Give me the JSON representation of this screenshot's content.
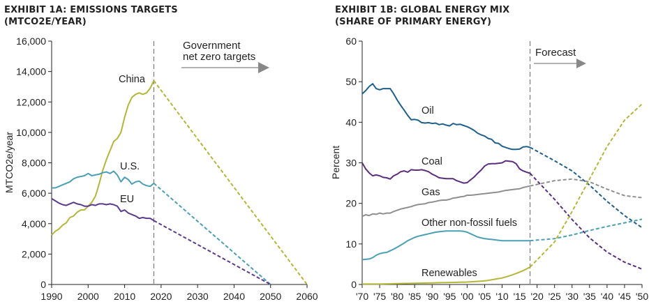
{
  "chart_data": [
    {
      "type": "line",
      "title": "EXHIBIT 1A: EMISSIONS TARGETS",
      "subtitle": "(MTCO2E/YEAR)",
      "ylabel": "MTCO2e/year",
      "xlim": [
        1990,
        2060
      ],
      "ylim": [
        0,
        16000
      ],
      "xticks": [
        1990,
        2000,
        2010,
        2020,
        2030,
        2040,
        2050,
        2060
      ],
      "xtick_labels": [
        "1990",
        "2000",
        "2010",
        "2020",
        "2030",
        "2040",
        "2050",
        "2060"
      ],
      "yticks": [
        0,
        2000,
        4000,
        6000,
        8000,
        10000,
        12000,
        14000,
        16000
      ],
      "ytick_labels": [
        "0",
        "2,000",
        "4,000",
        "6,000",
        "8,000",
        "10,000",
        "12,000",
        "14,000",
        "16,000"
      ],
      "divider_x": 2018,
      "annotation": {
        "line1": "Government",
        "line2": "net zero targets"
      },
      "series": [
        {
          "name": "China",
          "color": "#b5b53a",
          "x": [
            1990,
            1991,
            1992,
            1993,
            1994,
            1995,
            1996,
            1997,
            1998,
            1999,
            2000,
            2001,
            2002,
            2003,
            2004,
            2005,
            2006,
            2007,
            2008,
            2009,
            2010,
            2011,
            2012,
            2013,
            2014,
            2015,
            2016,
            2017,
            2018
          ],
          "y": [
            3250,
            3500,
            3650,
            3900,
            4050,
            4400,
            4500,
            4750,
            4900,
            4900,
            5150,
            5400,
            5800,
            6600,
            7500,
            8200,
            8800,
            9400,
            9600,
            10000,
            11000,
            11800,
            12300,
            12500,
            12600,
            12500,
            12600,
            12900,
            13400
          ],
          "proj_x": [
            2018,
            2060
          ],
          "proj_y": [
            13400,
            0
          ]
        },
        {
          "name": "U.S.",
          "color": "#4a9fb5",
          "x": [
            1990,
            1991,
            1992,
            1993,
            1994,
            1995,
            1996,
            1997,
            1998,
            1999,
            2000,
            2001,
            2002,
            2003,
            2004,
            2005,
            2006,
            2007,
            2008,
            2009,
            2010,
            2011,
            2012,
            2013,
            2014,
            2015,
            2016,
            2017,
            2018
          ],
          "y": [
            6350,
            6350,
            6450,
            6550,
            6650,
            6750,
            6950,
            7050,
            7100,
            7150,
            7300,
            7150,
            7200,
            7250,
            7350,
            7400,
            7300,
            7450,
            7200,
            6750,
            7050,
            6900,
            6600,
            6750,
            6800,
            6600,
            6500,
            6450,
            6650
          ],
          "proj_x": [
            2018,
            2050
          ],
          "proj_y": [
            6650,
            0
          ]
        },
        {
          "name": "EU",
          "color": "#5b3a8c",
          "x": [
            1990,
            1991,
            1992,
            1993,
            1994,
            1995,
            1996,
            1997,
            1998,
            1999,
            2000,
            2001,
            2002,
            2003,
            2004,
            2005,
            2006,
            2007,
            2008,
            2009,
            2010,
            2011,
            2012,
            2013,
            2014,
            2015,
            2016,
            2017,
            2018
          ],
          "y": [
            5650,
            5500,
            5350,
            5250,
            5200,
            5300,
            5400,
            5300,
            5250,
            5150,
            5150,
            5250,
            5200,
            5300,
            5300,
            5250,
            5300,
            5250,
            5150,
            4800,
            4900,
            4700,
            4600,
            4500,
            4350,
            4400,
            4350,
            4350,
            4200
          ],
          "proj_x": [
            2018,
            2050
          ],
          "proj_y": [
            4200,
            0
          ]
        }
      ]
    },
    {
      "type": "line",
      "title": "EXHIBIT 1B: GLOBAL ENERGY MIX",
      "subtitle": "(SHARE OF PRIMARY ENERGY)",
      "ylabel": "Percent",
      "xlim": [
        1970,
        2050
      ],
      "ylim": [
        0,
        60
      ],
      "xticks": [
        1970,
        1975,
        1980,
        1985,
        1990,
        1995,
        2000,
        2005,
        2010,
        2015,
        2020,
        2025,
        2030,
        2035,
        2040,
        2045,
        2050
      ],
      "xtick_labels": [
        "'70",
        "'75",
        "'80",
        "'85",
        "'90",
        "'95",
        "'00",
        "'05",
        "'10",
        "'15",
        "'20",
        "'25",
        "'30",
        "'35",
        "'40",
        "'45",
        "'50"
      ],
      "yticks": [
        0,
        10,
        20,
        30,
        40,
        50,
        60
      ],
      "ytick_labels": [
        "0",
        "10",
        "20",
        "30",
        "40",
        "50",
        "60"
      ],
      "divider_x": 2018,
      "annotation": {
        "line1": "Forecast"
      },
      "series": [
        {
          "name": "Oil",
          "color": "#1f5f8b",
          "x": [
            1970,
            1971,
            1972,
            1973,
            1974,
            1975,
            1976,
            1977,
            1978,
            1979,
            1980,
            1981,
            1982,
            1983,
            1984,
            1985,
            1986,
            1987,
            1988,
            1989,
            1990,
            1991,
            1992,
            1993,
            1994,
            1995,
            1996,
            1997,
            1998,
            1999,
            2000,
            2001,
            2002,
            2003,
            2004,
            2005,
            2006,
            2007,
            2008,
            2009,
            2010,
            2011,
            2012,
            2013,
            2014,
            2015,
            2016,
            2017,
            2018
          ],
          "y": [
            47,
            47.8,
            48.8,
            49.5,
            48.3,
            48,
            48.3,
            48.3,
            48.3,
            47,
            45.5,
            44.2,
            43,
            41.7,
            40.6,
            40.7,
            40.5,
            39.9,
            39.8,
            39.9,
            39.7,
            39.8,
            39.4,
            39.6,
            39.3,
            39.1,
            39.7,
            39.4,
            39.5,
            39.2,
            38.9,
            38.5,
            38,
            37.3,
            36.9,
            36.6,
            36,
            35.8,
            34.9,
            34.8,
            34.1,
            33.8,
            33.5,
            33.3,
            33.3,
            33.4,
            33.9,
            34.0,
            33.8
          ],
          "proj_x": [
            2018,
            2025,
            2030,
            2035,
            2040,
            2045,
            2050
          ],
          "proj_y": [
            33.8,
            30.5,
            28,
            24.5,
            20.5,
            17,
            14
          ]
        },
        {
          "name": "Coal",
          "color": "#5b2d7f",
          "x": [
            1970,
            1971,
            1972,
            1973,
            1974,
            1975,
            1976,
            1977,
            1978,
            1979,
            1980,
            1981,
            1982,
            1983,
            1984,
            1985,
            1986,
            1987,
            1988,
            1989,
            1990,
            1991,
            1992,
            1993,
            1994,
            1995,
            1996,
            1997,
            1998,
            1999,
            2000,
            2001,
            2002,
            2003,
            2004,
            2005,
            2006,
            2007,
            2008,
            2009,
            2010,
            2011,
            2012,
            2013,
            2014,
            2015,
            2016,
            2017,
            2018
          ],
          "y": [
            30,
            28.5,
            27.5,
            26.8,
            27,
            26.8,
            26.4,
            26.3,
            26,
            26.8,
            27.2,
            27.8,
            28,
            27.7,
            28.3,
            28.2,
            28.2,
            28.3,
            28.1,
            27.8,
            27.2,
            26.8,
            26.3,
            26.2,
            26.1,
            26.1,
            26.1,
            25.6,
            25.3,
            25.0,
            25.1,
            25.8,
            26.5,
            27.4,
            28.2,
            29.2,
            29.7,
            29.8,
            29.8,
            29.9,
            30,
            30.5,
            30.4,
            30.3,
            29.8,
            28.5,
            28.0,
            27.7,
            27.4
          ],
          "proj_x": [
            2018,
            2025,
            2030,
            2035,
            2040,
            2045,
            2050
          ],
          "proj_y": [
            27.4,
            21,
            16,
            11.5,
            8,
            5.5,
            3.8
          ]
        },
        {
          "name": "Gas",
          "color": "#8f8f8f",
          "x": [
            1970,
            1971,
            1972,
            1973,
            1974,
            1975,
            1976,
            1977,
            1978,
            1979,
            1980,
            1981,
            1982,
            1983,
            1984,
            1985,
            1986,
            1987,
            1988,
            1989,
            1990,
            1991,
            1992,
            1993,
            1994,
            1995,
            1996,
            1997,
            1998,
            1999,
            2000,
            2001,
            2002,
            2003,
            2004,
            2005,
            2006,
            2007,
            2008,
            2009,
            2010,
            2011,
            2012,
            2013,
            2014,
            2015,
            2016,
            2017,
            2018
          ],
          "y": [
            16.8,
            17.2,
            17.0,
            17.4,
            17.3,
            17.6,
            17.4,
            17.6,
            17.6,
            18,
            18.3,
            18.6,
            18.8,
            19,
            19.2,
            19.5,
            19.7,
            19.8,
            19.9,
            20.2,
            20.3,
            20.5,
            20.7,
            20.8,
            20.8,
            21,
            21.3,
            21.4,
            21.6,
            21.7,
            22,
            22,
            22.1,
            22.2,
            22.3,
            22.4,
            22.5,
            22.6,
            22.7,
            22.8,
            23,
            23.2,
            23.3,
            23.4,
            23.5,
            23.6,
            23.9,
            24.1,
            24.3
          ],
          "proj_x": [
            2018,
            2025,
            2030,
            2035,
            2040,
            2045,
            2050
          ],
          "proj_y": [
            24.3,
            25.6,
            26,
            25.3,
            23.5,
            21.9,
            21.4
          ]
        },
        {
          "name": "Other non-fossil fuels",
          "color": "#4a9fb5",
          "x": [
            1970,
            1971,
            1972,
            1973,
            1974,
            1975,
            1976,
            1977,
            1978,
            1979,
            1980,
            1981,
            1982,
            1983,
            1984,
            1985,
            1986,
            1987,
            1988,
            1989,
            1990,
            1991,
            1992,
            1993,
            1994,
            1995,
            1996,
            1997,
            1998,
            1999,
            2000,
            2001,
            2002,
            2003,
            2004,
            2005,
            2006,
            2007,
            2008,
            2009,
            2010,
            2011,
            2012,
            2013,
            2014,
            2015,
            2016,
            2017,
            2018
          ],
          "y": [
            6.1,
            6.2,
            6.3,
            6.6,
            7.2,
            7.6,
            7.8,
            7.9,
            8.3,
            8.7,
            9.2,
            9.7,
            10.2,
            10.8,
            11.2,
            11.6,
            11.9,
            12.1,
            12.3,
            12.5,
            12.7,
            12.9,
            13,
            13.1,
            13.2,
            13.2,
            13.2,
            13.2,
            13.2,
            13.1,
            12.9,
            12.5,
            12.1,
            11.7,
            11.5,
            11.3,
            11.2,
            11.1,
            11,
            10.9,
            10.8,
            10.8,
            10.8,
            10.8,
            10.8,
            10.8,
            10.8,
            10.8,
            10.8
          ],
          "proj_x": [
            2018,
            2025,
            2030,
            2035,
            2040,
            2045,
            2050
          ],
          "proj_y": [
            10.8,
            11.3,
            12.2,
            13.3,
            14.3,
            15.2,
            16.1
          ]
        },
        {
          "name": "Renewables",
          "color": "#b5b53a",
          "x": [
            1970,
            1975,
            1980,
            1985,
            1990,
            1995,
            2000,
            2002,
            2004,
            2006,
            2008,
            2010,
            2012,
            2014,
            2016,
            2018
          ],
          "y": [
            0.1,
            0.1,
            0.2,
            0.3,
            0.4,
            0.5,
            0.6,
            0.7,
            0.8,
            1.0,
            1.3,
            1.6,
            2.1,
            2.7,
            3.4,
            4.3
          ],
          "proj_x": [
            2018,
            2025,
            2030,
            2035,
            2040,
            2045,
            2050
          ],
          "proj_y": [
            4.3,
            10.5,
            18,
            26,
            34,
            40.5,
            44.5
          ]
        }
      ]
    }
  ]
}
